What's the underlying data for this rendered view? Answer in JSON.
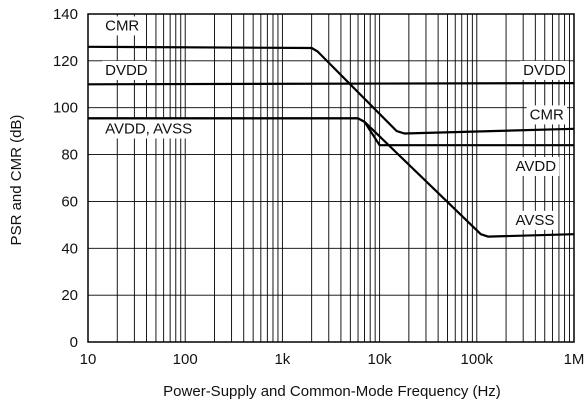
{
  "chart_data": {
    "type": "line",
    "xscale": "log",
    "xlim": [
      10,
      1000000
    ],
    "ylim": [
      0,
      140
    ],
    "grid": true,
    "xlabel": "Power-Supply and Common-Mode Frequency (Hz)",
    "ylabel": "PSR and CMR (dB)",
    "x_ticks": [
      10,
      100,
      1000,
      10000,
      100000,
      1000000
    ],
    "x_tick_labels": [
      "10",
      "100",
      "1k",
      "10k",
      "100k",
      "1M"
    ],
    "y_ticks": [
      0,
      20,
      40,
      60,
      80,
      100,
      120,
      140
    ],
    "y_tick_labels": [
      "0",
      "20",
      "40",
      "60",
      "80",
      "100",
      "120",
      "140"
    ],
    "series": [
      {
        "x": [
          10,
          2000,
          2300,
          15000,
          18000,
          1000000
        ],
        "y": [
          126,
          125.5,
          124,
          90,
          89,
          91
        ]
      },
      {
        "x": [
          10,
          1000000
        ],
        "y": [
          110,
          110.5
        ]
      },
      {
        "x": [
          10,
          6000,
          7000,
          10000,
          1000000
        ],
        "y": [
          95.5,
          95.5,
          94,
          84,
          84
        ]
      },
      {
        "x": [
          10,
          6000,
          7000,
          110000,
          130000,
          1000000
        ],
        "y": [
          95.5,
          95.5,
          94,
          46,
          45,
          46
        ]
      }
    ],
    "annotations": [
      {
        "text": "CMR",
        "x": 15,
        "y": 133
      },
      {
        "text": "DVDD",
        "x": 15,
        "y": 114
      },
      {
        "text": "AVDD, AVSS",
        "x": 15,
        "y": 89
      },
      {
        "text": "DVDD",
        "x": 300000,
        "y": 114
      },
      {
        "text": "CMR",
        "x": 350000,
        "y": 95
      },
      {
        "text": "AVDD",
        "x": 250000,
        "y": 73
      },
      {
        "text": "AVSS",
        "x": 250000,
        "y": 50
      }
    ]
  }
}
